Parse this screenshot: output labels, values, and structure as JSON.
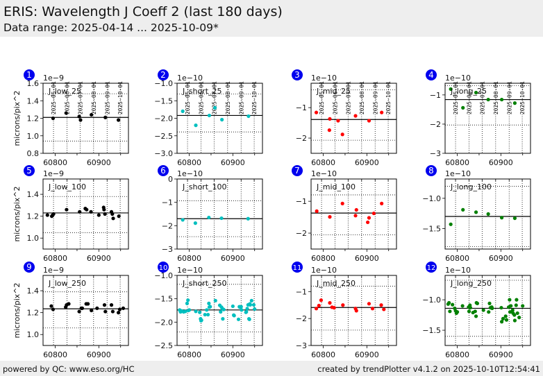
{
  "header": {
    "title": "ERIS: Wavelength J Coeff 2 (last 180 days)",
    "subtitle": "Data range: 2025-04-14 ... 2025-10-09*"
  },
  "footer": {
    "left": "powered by QC: www.eso.org/HC",
    "right": "created by trendPlotter v4.1.2 on 2025-10-10T12:54:41"
  },
  "badge_color": "#0000ee",
  "chart_data": [
    {
      "index": "1",
      "type": "scatter",
      "title": "J_low_25",
      "ylabel": "microns/pix^2",
      "exponent": "1e−9",
      "color": "#000000",
      "xlim": [
        60772,
        60968
      ],
      "ylim": [
        0.8,
        1.6
      ],
      "yticks": [
        0.8,
        1.0,
        1.2,
        1.4,
        1.6
      ],
      "ytick_labels": [
        "0.8",
        "1.0",
        "1.2",
        "1.4",
        "1.6"
      ],
      "xticks": [
        60800,
        60900
      ],
      "xtick_labels": [
        "60800",
        "60900"
      ],
      "date_ticks": [
        60796,
        60827,
        60857,
        60888,
        60919,
        60949
      ],
      "date_labels": [
        "2025-05-01",
        "2025-06-01",
        "2025-07-01",
        "2025-08-01",
        "2025-09-01",
        "2025-10-01"
      ],
      "mean": 1.21,
      "limits": [
        0.94,
        1.48
      ],
      "x": [
        60795,
        60825,
        60855,
        60858,
        60883,
        60915,
        60945
      ],
      "y": [
        1.2,
        1.26,
        1.22,
        1.18,
        1.24,
        1.21,
        1.18
      ]
    },
    {
      "index": "2",
      "type": "scatter",
      "title": "J_short_25",
      "ylabel": "",
      "exponent": "1e−10",
      "color": "#00bfbf",
      "xlim": [
        60772,
        60968
      ],
      "ylim": [
        -3.0,
        -1.0
      ],
      "yticks": [
        -3.0,
        -2.5,
        -2.0,
        -1.5,
        -1.0
      ],
      "ytick_labels": [
        "−3.0",
        "−2.5",
        "−2.0",
        "−1.5",
        "−1.0"
      ],
      "xticks": [
        60800,
        60900
      ],
      "xtick_labels": [
        "60800",
        "60900"
      ],
      "date_ticks": [
        60796,
        60827,
        60857,
        60888,
        60919,
        60949
      ],
      "date_labels": [
        "2025-05-01",
        "2025-06-01",
        "2025-07-01",
        "2025-08-01",
        "2025-09-01",
        "2025-10-01"
      ],
      "mean": -1.92,
      "limits": [
        -2.39,
        -1.31
      ],
      "x": [
        60785,
        60815,
        60846,
        60859,
        60875,
        60936
      ],
      "y": [
        -1.8,
        -2.2,
        -1.92,
        -1.7,
        -2.04,
        -1.94
      ]
    },
    {
      "index": "3",
      "type": "scatter",
      "title": "J_mid_25",
      "ylabel": "",
      "exponent": "1e−10",
      "color": "#ff0000",
      "xlim": [
        60772,
        60968
      ],
      "ylim": [
        -2.5,
        -0.2
      ],
      "yticks": [
        -2,
        -1
      ],
      "ytick_labels": [
        "−2",
        "−1"
      ],
      "xticks": [
        60800,
        60900
      ],
      "xtick_labels": [
        "60800",
        "60900"
      ],
      "date_ticks": [
        60796,
        60827,
        60857,
        60888,
        60919,
        60949
      ],
      "date_labels": [
        "2025-05-01",
        "2025-06-01",
        "2025-07-01",
        "2025-08-01",
        "2025-09-01",
        "2025-10-01"
      ],
      "mean": -1.39,
      "limits": [
        -2.07,
        -0.42
      ],
      "x": [
        60784,
        60815,
        60814,
        60834,
        60844,
        60874,
        60905,
        60934
      ],
      "y": [
        -1.16,
        -1.37,
        -1.74,
        -1.43,
        -1.88,
        -1.27,
        -1.43,
        -1.16
      ]
    },
    {
      "index": "4",
      "type": "scatter",
      "title": "J_long_25",
      "ylabel": "",
      "exponent": "1e−10",
      "color": "#008000",
      "xlim": [
        60772,
        60968
      ],
      "ylim": [
        -3.0,
        -0.6
      ],
      "yticks": [
        -3,
        -2,
        -1
      ],
      "ytick_labels": [
        "−3",
        "−2",
        "−1"
      ],
      "xticks": [
        60800,
        60900
      ],
      "xtick_labels": [
        "60800",
        "60900"
      ],
      "date_ticks": [
        60796,
        60827,
        60857,
        60888,
        60919,
        60949
      ],
      "date_labels": [
        "2025-05-01",
        "2025-06-01",
        "2025-07-01",
        "2025-08-01",
        "2025-09-01",
        "2025-10-01"
      ],
      "mean": -1.16,
      "limits": [
        -2.03,
        -0.68
      ],
      "x": [
        60785,
        60813,
        60843,
        60871,
        60902,
        60932
      ],
      "y": [
        -0.8,
        -1.44,
        -0.92,
        -1.16,
        -1.16,
        -1.28
      ]
    },
    {
      "index": "5",
      "type": "scatter",
      "title": "J_low_100",
      "ylabel": "microns/pix^2",
      "exponent": "1e−9",
      "color": "#000000",
      "xlim": [
        60772,
        60968
      ],
      "ylim": [
        0.9,
        1.54
      ],
      "yticks": [
        1.0,
        1.2,
        1.4
      ],
      "ytick_labels": [
        "1.0",
        "1.2",
        "1.4"
      ],
      "xticks": [
        60800,
        60900
      ],
      "xtick_labels": [
        "60800",
        "60900"
      ],
      "date_ticks": [
        60796,
        60827,
        60857,
        60888,
        60919,
        60949
      ],
      "date_labels": [
        "2025-05-01",
        "2025-06-01",
        "2025-07-01",
        "2025-08-01",
        "2025-09-01",
        "2025-10-01"
      ],
      "mean": 1.23,
      "limits": [
        1.05,
        1.38
      ],
      "x": [
        60782,
        60792,
        60794,
        60796,
        60826,
        60856,
        60869,
        60872,
        60882,
        60900,
        60911,
        60912,
        60914,
        60929,
        60931,
        60933,
        60946
      ],
      "y": [
        1.21,
        1.2,
        1.21,
        1.22,
        1.26,
        1.24,
        1.27,
        1.26,
        1.24,
        1.21,
        1.28,
        1.26,
        1.22,
        1.24,
        1.22,
        1.18,
        1.2
      ]
    },
    {
      "index": "6",
      "type": "scatter",
      "title": "J_short_100",
      "ylabel": "",
      "exponent": "1e−10",
      "color": "#00bfbf",
      "xlim": [
        60772,
        60968
      ],
      "ylim": [
        -3.0,
        0.0
      ],
      "yticks": [
        -3,
        -2,
        -1,
        0
      ],
      "ytick_labels": [
        "−3",
        "−2",
        "−1",
        "0"
      ],
      "xticks": [
        60800,
        60900
      ],
      "xtick_labels": [
        "60800",
        "60900"
      ],
      "date_ticks": [
        60796,
        60827,
        60857,
        60888,
        60919,
        60949
      ],
      "date_labels": [
        "2025-05-01",
        "2025-06-01",
        "2025-07-01",
        "2025-08-01",
        "2025-09-01",
        "2025-10-01"
      ],
      "mean": -1.7,
      "limits": [
        -2.47,
        -0.93
      ],
      "x": [
        60785,
        60814,
        60845,
        60874,
        60935
      ],
      "y": [
        -1.75,
        -1.89,
        -1.65,
        -1.68,
        -1.7
      ]
    },
    {
      "index": "7",
      "type": "scatter",
      "title": "J_mid_100",
      "ylabel": "",
      "exponent": "1e−10",
      "color": "#ff0000",
      "xlim": [
        60772,
        60968
      ],
      "ylim": [
        -2.5,
        -0.3
      ],
      "yticks": [
        -2,
        -1
      ],
      "ytick_labels": [
        "−2",
        "−1"
      ],
      "xticks": [
        60800,
        60900
      ],
      "xtick_labels": [
        "60800",
        "60900"
      ],
      "date_ticks": [
        60796,
        60827,
        60857,
        60888,
        60919,
        60949
      ],
      "date_labels": [
        "2025-05-01",
        "2025-06-01",
        "2025-07-01",
        "2025-08-01",
        "2025-09-01",
        "2025-10-01"
      ],
      "mean": -1.37,
      "limits": [
        -2.05,
        -0.8
      ],
      "x": [
        60785,
        60815,
        60844,
        60874,
        60876,
        60902,
        60905,
        60916,
        60934
      ],
      "y": [
        -1.31,
        -1.49,
        -1.07,
        -1.45,
        -1.27,
        -1.66,
        -1.52,
        -1.38,
        -1.07
      ]
    },
    {
      "index": "8",
      "type": "scatter",
      "title": "J_long_100",
      "ylabel": "",
      "exponent": "1e−10",
      "color": "#008000",
      "xlim": [
        60772,
        60968
      ],
      "ylim": [
        -1.84,
        -0.68
      ],
      "yticks": [
        -1.5,
        -1.0
      ],
      "ytick_labels": [
        "−1.5",
        "−1.0"
      ],
      "xticks": [
        60800,
        60900
      ],
      "xtick_labels": [
        "60800",
        "60900"
      ],
      "date_ticks": [
        60796,
        60827,
        60857,
        60888,
        60919,
        60949
      ],
      "date_labels": [
        "2025-05-01",
        "2025-06-01",
        "2025-07-01",
        "2025-08-01",
        "2025-09-01",
        "2025-10-01"
      ],
      "mean": -1.3,
      "limits": [
        -1.8,
        -0.8
      ],
      "x": [
        60785,
        60813,
        60843,
        60871,
        60902,
        60932
      ],
      "y": [
        -1.43,
        -1.19,
        -1.23,
        -1.26,
        -1.32,
        -1.33
      ]
    },
    {
      "index": "9",
      "type": "scatter",
      "title": "J_low_250",
      "ylabel": "microns/pix^2",
      "exponent": "1e−9",
      "color": "#000000",
      "xlim": [
        60772,
        60968
      ],
      "ylim": [
        0.9,
        1.54
      ],
      "yticks": [
        1.0,
        1.2,
        1.4
      ],
      "ytick_labels": [
        "1.0",
        "1.2",
        "1.4"
      ],
      "xticks": [
        60800,
        60900
      ],
      "xtick_labels": [
        "60800",
        "60900"
      ],
      "date_ticks": [
        60796,
        60827,
        60857,
        60888,
        60919,
        60949
      ],
      "date_labels": [
        "2025-05-01",
        "2025-06-01",
        "2025-07-01",
        "2025-08-01",
        "2025-09-01",
        "2025-10-01"
      ],
      "mean": 1.235,
      "limits": [
        1.06,
        1.39
      ],
      "x": [
        60791,
        60795,
        60824,
        60826,
        60831,
        60855,
        60860,
        60862,
        60871,
        60875,
        60883,
        60896,
        60913,
        60915,
        60929,
        60932,
        60945,
        60948,
        60956
      ],
      "y": [
        1.26,
        1.23,
        1.25,
        1.27,
        1.28,
        1.21,
        1.24,
        1.24,
        1.28,
        1.28,
        1.22,
        1.24,
        1.27,
        1.21,
        1.27,
        1.21,
        1.2,
        1.23,
        1.24
      ]
    },
    {
      "index": "10",
      "type": "scatter",
      "title": "J_short_250",
      "ylabel": "",
      "exponent": "1e−10",
      "color": "#00bfbf",
      "xlim": [
        60772,
        60968
      ],
      "ylim": [
        -2.5,
        -1.0
      ],
      "yticks": [
        -2.5,
        -2.0,
        -1.5,
        -1.0
      ],
      "ytick_labels": [
        "−2.5",
        "−2.0",
        "−1.5",
        "−1.0"
      ],
      "xticks": [
        60800,
        60900
      ],
      "xtick_labels": [
        "60800",
        "60900"
      ],
      "date_ticks": [
        60796,
        60827,
        60857,
        60888,
        60919,
        60949
      ],
      "date_labels": [
        "2025-05-01",
        "2025-06-01",
        "2025-07-01",
        "2025-08-01",
        "2025-09-01",
        "2025-10-01"
      ],
      "mean": -1.74,
      "limits": [
        -2.21,
        -1.19
      ],
      "x": [
        60778,
        60780,
        60783,
        60787,
        60791,
        60795,
        60797,
        60798,
        60800,
        60815,
        60824,
        60826,
        60827,
        60828,
        60836,
        60840,
        60843,
        60845,
        60846,
        60848,
        60860,
        60870,
        60872,
        60874,
        60876,
        60877,
        60879,
        60900,
        60902,
        60903,
        60913,
        60915,
        60916,
        60919,
        60920,
        60930,
        60931,
        60933,
        60935,
        60937,
        60938,
        60939,
        60940,
        60943,
        60948,
        60950
      ],
      "y": [
        -1.74,
        -1.78,
        -1.76,
        -1.78,
        -1.77,
        -1.6,
        -1.53,
        -1.75,
        -1.74,
        -1.77,
        -1.79,
        -1.93,
        -1.97,
        -1.96,
        -1.84,
        -1.74,
        -1.84,
        -1.6,
        -1.68,
        -1.67,
        -1.54,
        -1.64,
        -1.78,
        -1.68,
        -1.71,
        -1.93,
        -1.73,
        -1.66,
        -1.85,
        -1.86,
        -1.94,
        -1.67,
        -1.68,
        -1.67,
        -1.74,
        -1.79,
        -1.78,
        -1.71,
        -1.63,
        -1.93,
        -1.94,
        -1.61,
        -1.63,
        -1.54,
        -1.63,
        -1.72
      ]
    },
    {
      "index": "11",
      "type": "scatter",
      "title": "J_mid_250",
      "ylabel": "",
      "exponent": "1e−10",
      "color": "#ff0000",
      "xlim": [
        60772,
        60968
      ],
      "ylim": [
        -3.0,
        -0.4
      ],
      "yticks": [
        -3,
        -2,
        -1
      ],
      "ytick_labels": [
        "−3",
        "−2",
        "−1"
      ],
      "xticks": [
        60800,
        60900
      ],
      "xtick_labels": [
        "60800",
        "60900"
      ],
      "date_ticks": [
        60796,
        60827,
        60857,
        60888,
        60919,
        60949
      ],
      "date_labels": [
        "2025-05-01",
        "2025-06-01",
        "2025-07-01",
        "2025-08-01",
        "2025-09-01",
        "2025-10-01"
      ],
      "mean": -1.59,
      "limits": [
        -2.43,
        -0.8
      ],
      "x": [
        60784,
        60790,
        60795,
        60815,
        60820,
        60825,
        60845,
        60874,
        60876,
        60905,
        60913,
        60933,
        60939
      ],
      "y": [
        -1.63,
        -1.52,
        -1.32,
        -1.42,
        -1.58,
        -1.6,
        -1.5,
        -1.63,
        -1.71,
        -1.45,
        -1.63,
        -1.5,
        -1.66
      ]
    },
    {
      "index": "12",
      "type": "scatter",
      "title": "J_long_250",
      "ylabel": "",
      "exponent": "1e−10",
      "color": "#008000",
      "xlim": [
        60772,
        60968
      ],
      "ylim": [
        -1.75,
        -0.6
      ],
      "yticks": [
        -1.5,
        -1.0
      ],
      "ytick_labels": [
        "−1.5",
        "−1.0"
      ],
      "xticks": [
        60800,
        60900
      ],
      "xtick_labels": [
        "60800",
        "60900"
      ],
      "date_ticks": [
        60796,
        60827,
        60857,
        60888,
        60919,
        60949
      ],
      "date_labels": [
        "2025-05-01",
        "2025-06-01",
        "2025-07-01",
        "2025-08-01",
        "2025-09-01",
        "2025-10-01"
      ],
      "mean": -1.14,
      "limits": [
        -1.6,
        -0.68
      ],
      "x": [
        60779,
        60781,
        60783,
        60789,
        60794,
        60796,
        60798,
        60800,
        60812,
        60826,
        60827,
        60829,
        60830,
        60836,
        60841,
        60843,
        60844,
        60846,
        60860,
        60872,
        60874,
        60876,
        60879,
        60880,
        60901,
        60902,
        60905,
        60911,
        60913,
        60918,
        60920,
        60921,
        60923,
        60927,
        60928,
        60931,
        60932,
        60935,
        60936,
        60938,
        60942,
        60950
      ],
      "y": [
        -1.07,
        -1.05,
        -1.19,
        -1.08,
        -1.14,
        -1.18,
        -1.22,
        -1.2,
        -1.1,
        -1.12,
        -1.19,
        -1.09,
        -1.13,
        -1.21,
        -1.19,
        -1.27,
        -1.05,
        -1.06,
        -1.17,
        -1.2,
        -1.06,
        -1.13,
        -1.12,
        -1.14,
        -1.13,
        -1.36,
        -1.31,
        -1.27,
        -1.33,
        -1.12,
        -1.0,
        -1.2,
        -1.1,
        -1.17,
        -1.22,
        -1.25,
        -1.34,
        -1.09,
        -1.0,
        -1.22,
        -1.29,
        -1.1
      ]
    }
  ]
}
